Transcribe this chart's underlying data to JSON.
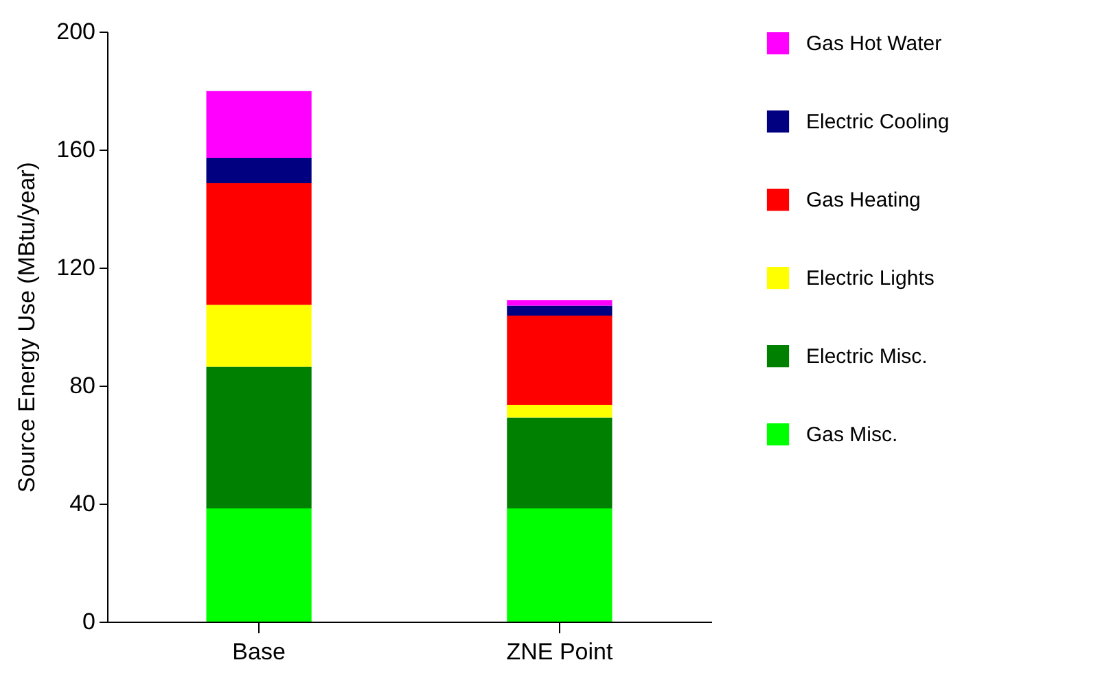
{
  "chart_data": {
    "type": "bar",
    "stacked": true,
    "ylabel": "Source Energy Use (MBtu/year)",
    "categories": [
      "Base",
      "ZNE Point"
    ],
    "series": [
      {
        "name": "Gas Misc.",
        "color": "#00ff00",
        "values": [
          38.4,
          38.4
        ]
      },
      {
        "name": "Electric Misc.",
        "color": "#008000",
        "values": [
          48,
          30.8
        ]
      },
      {
        "name": "Electric Lights",
        "color": "#ffff00",
        "values": [
          21,
          4.3
        ]
      },
      {
        "name": "Gas Heating",
        "color": "#ff0000",
        "values": [
          41.2,
          30.2
        ]
      },
      {
        "name": "Electric Cooling",
        "color": "#000080",
        "values": [
          8.6,
          3.4
        ]
      },
      {
        "name": "Gas Hot Water",
        "color": "#ff00ff",
        "values": [
          22.6,
          1.9
        ]
      }
    ],
    "ylim": [
      0,
      200
    ],
    "yticks": [
      0,
      40,
      80,
      120,
      160,
      200
    ],
    "grid": false,
    "legend": "right"
  }
}
